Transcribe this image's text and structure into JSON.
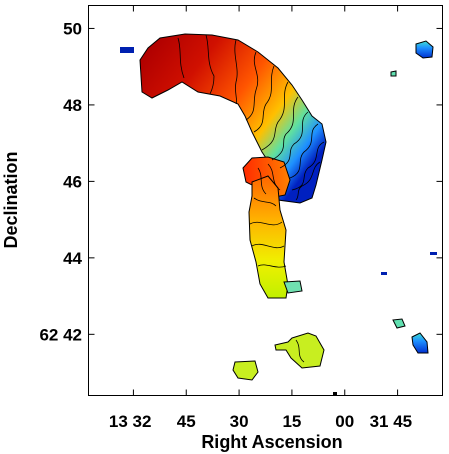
{
  "chart_data": {
    "type": "heatmap",
    "title": "",
    "xlabel": "Right Ascension",
    "ylabel": "Declination",
    "x_ticks": [
      "13 32",
      "45",
      "30",
      "15",
      "00",
      "31 45"
    ],
    "y_ticks": [
      "50",
      "48",
      "46",
      "44",
      "62 42"
    ],
    "y_tick_values": [
      50,
      48,
      46,
      44,
      42
    ],
    "ylim": [
      40.4,
      50.6
    ],
    "colormap": [
      "#0000cc",
      "#1e90ff",
      "#40e0d0",
      "#7fff00",
      "#ffff00",
      "#ffa500",
      "#ff3300",
      "#b00000"
    ],
    "contours": true,
    "grid": false,
    "legend": "none"
  }
}
